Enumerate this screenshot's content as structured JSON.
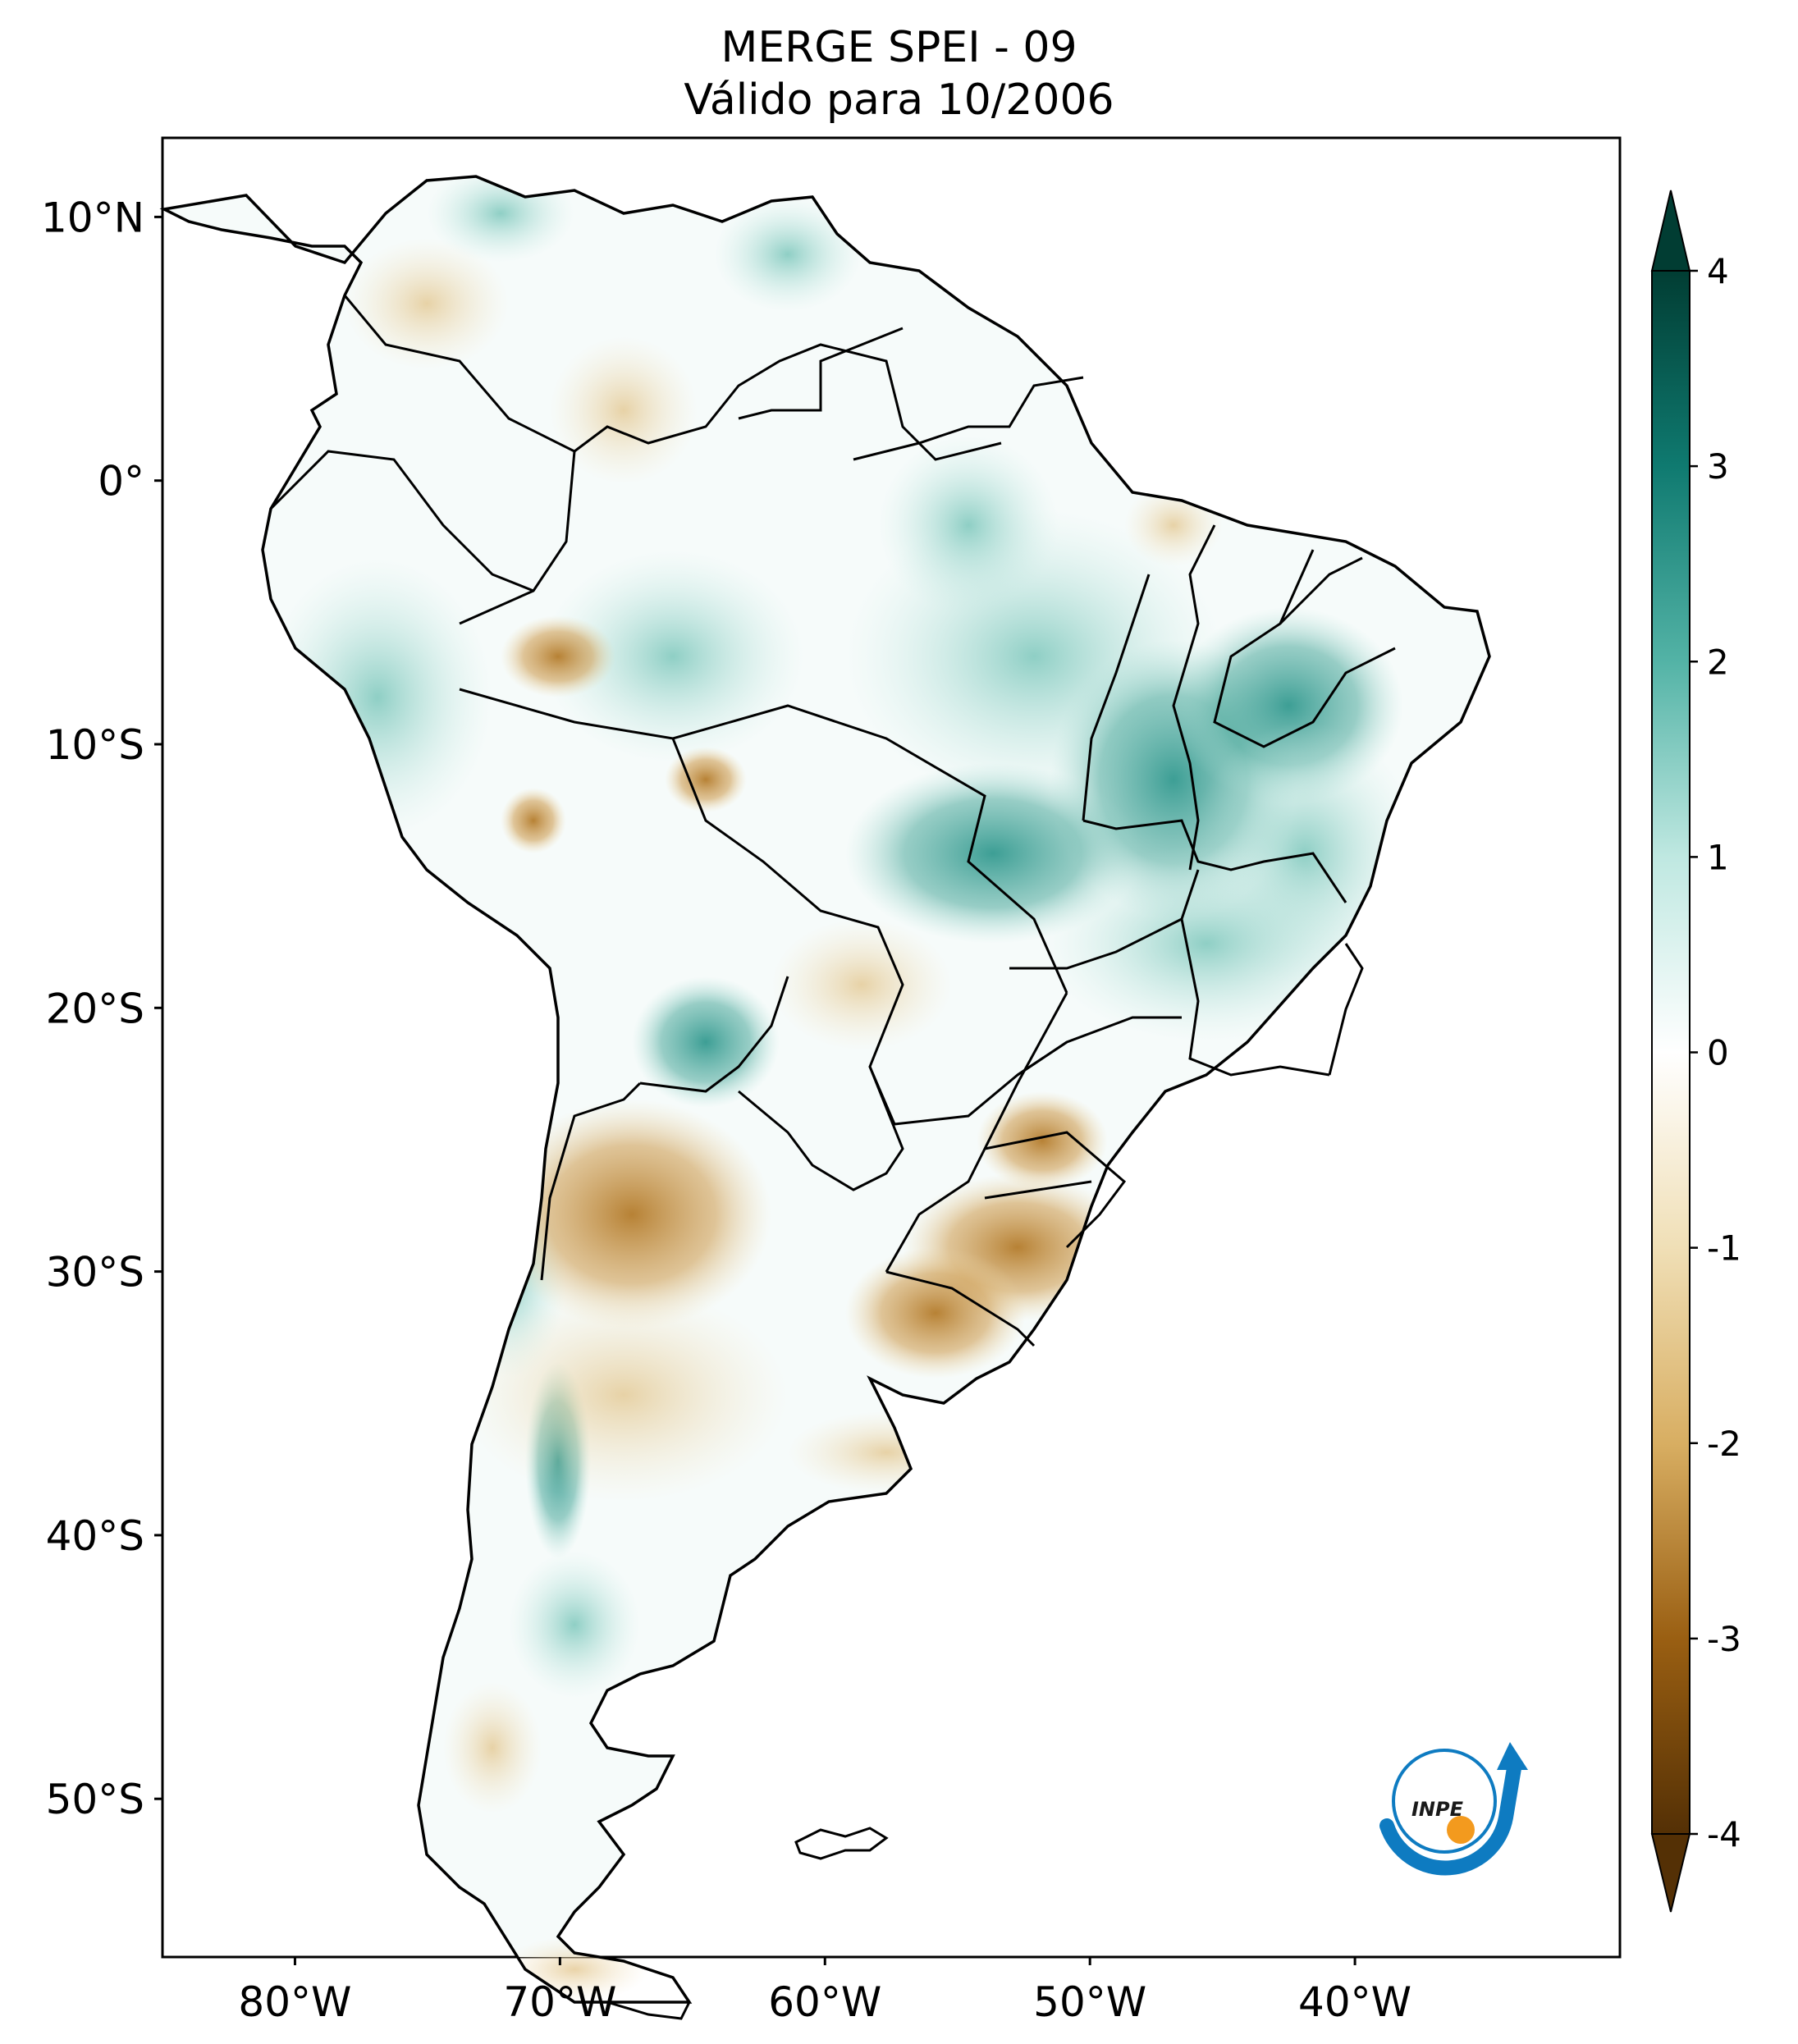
{
  "title": {
    "line1": "MERGE   SPEI - 09",
    "line2": "Válido para 10/2006"
  },
  "map": {
    "lon_range": [
      -85,
      -30
    ],
    "lat_range": [
      -56,
      13
    ],
    "lat_ticks": [
      {
        "value": 10,
        "label": "10°N"
      },
      {
        "value": 0,
        "label": "0°"
      },
      {
        "value": -10,
        "label": "10°S"
      },
      {
        "value": -20,
        "label": "20°S"
      },
      {
        "value": -30,
        "label": "30°S"
      },
      {
        "value": -40,
        "label": "40°S"
      },
      {
        "value": -50,
        "label": "50°S"
      }
    ],
    "lon_ticks": [
      {
        "value": -80,
        "label": "80°W"
      },
      {
        "value": -70,
        "label": "70°W"
      },
      {
        "value": -60,
        "label": "60°W"
      },
      {
        "value": -50,
        "label": "50°W"
      },
      {
        "value": -40,
        "label": "40°W"
      }
    ]
  },
  "colorbar": {
    "ticks": [
      {
        "value": 4,
        "label": "4"
      },
      {
        "value": 3,
        "label": "3"
      },
      {
        "value": 2,
        "label": "2"
      },
      {
        "value": 1,
        "label": "1"
      },
      {
        "value": 0,
        "label": "0"
      },
      {
        "value": -1,
        "label": "-1"
      },
      {
        "value": -2,
        "label": "-2"
      },
      {
        "value": -3,
        "label": "-3"
      },
      {
        "value": -4,
        "label": "-4"
      }
    ],
    "colors": {
      "dark_teal": "#01463a",
      "teal": "#0f7a70",
      "light_teal": "#7fcfc2",
      "white": "#ffffff",
      "light_brown": "#ecd6a6",
      "brown": "#c48a36",
      "dark_brown": "#543005"
    }
  },
  "logo": {
    "text": "INPE",
    "colors": {
      "blue": "#0e7bc1",
      "orange": "#f39a1e"
    }
  }
}
